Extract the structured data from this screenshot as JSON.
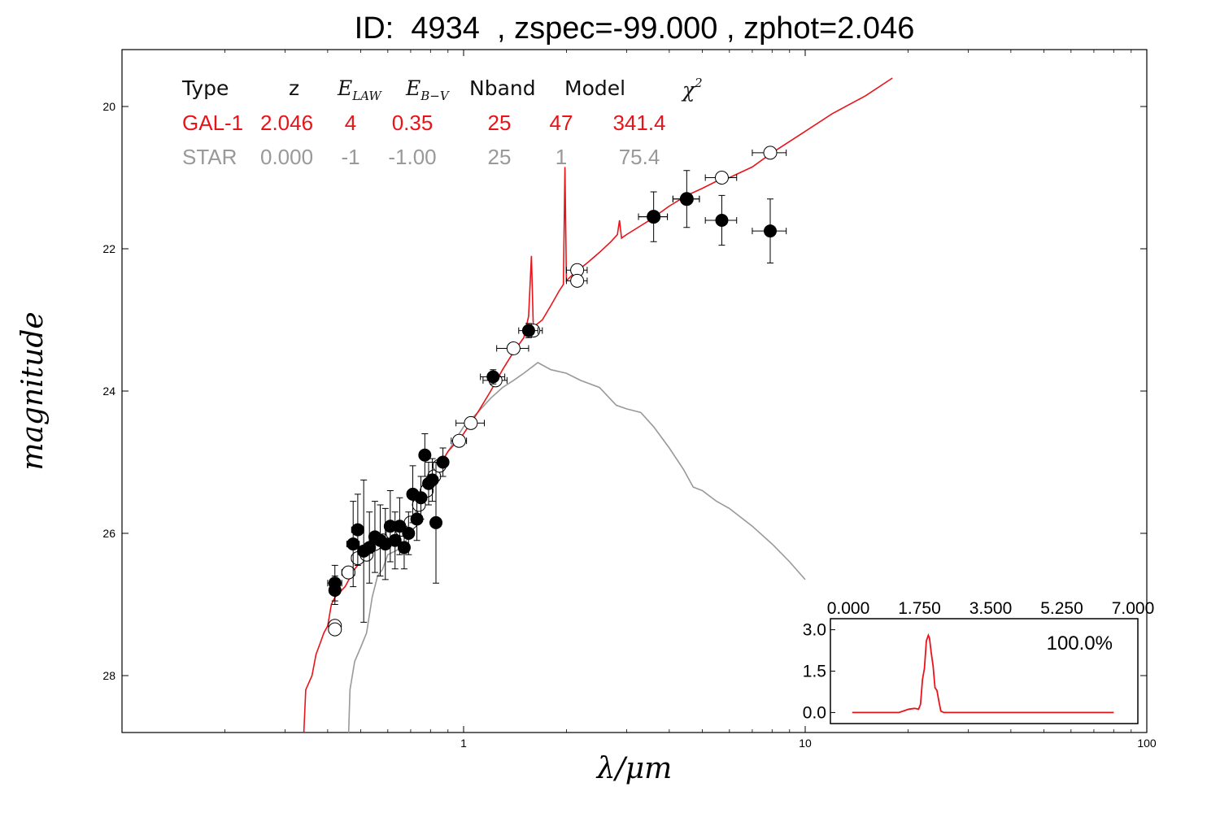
{
  "title": "ID:  4934  , zspec=-99.000 , zphot=2.046",
  "chart_data": {
    "type": "scatter",
    "xlabel": "λ/μm",
    "ylabel": "magnitude",
    "x_scale": "log",
    "xlim": [
      0.1,
      100
    ],
    "ylim": [
      28.8,
      19.2
    ],
    "y_inverted": true,
    "x_ticks": [
      {
        "v": 1,
        "label": "1"
      },
      {
        "v": 10,
        "label": "10"
      },
      {
        "v": 100,
        "label": "100"
      }
    ],
    "y_ticks": [
      {
        "v": 20,
        "label": "20"
      },
      {
        "v": 22,
        "label": "22"
      },
      {
        "v": 24,
        "label": "24"
      },
      {
        "v": 26,
        "label": "26"
      },
      {
        "v": 28,
        "label": "28"
      }
    ],
    "colors": {
      "galaxy": "#e8141a",
      "star": "#999999",
      "observed": "#000000",
      "model_points": "#ffffff"
    },
    "table": {
      "headers": [
        "Type",
        "z",
        "E_LAW",
        "E_B-V",
        "Nband",
        "Model",
        "χ²"
      ],
      "rows": [
        {
          "name": "gal",
          "values": [
            "GAL-1",
            "2.046",
            "4",
            "0.35",
            "25",
            "47",
            "341.4"
          ]
        },
        {
          "name": "star",
          "values": [
            "STAR",
            "0.000",
            "-1",
            "-1.00",
            "25",
            "1",
            "75.4"
          ]
        }
      ]
    },
    "galaxy_template": [
      [
        0.34,
        28.9
      ],
      [
        0.345,
        28.2
      ],
      [
        0.36,
        28.0
      ],
      [
        0.37,
        27.7
      ],
      [
        0.38,
        27.55
      ],
      [
        0.39,
        27.4
      ],
      [
        0.4,
        27.3
      ],
      [
        0.41,
        27.0
      ],
      [
        0.42,
        26.9
      ],
      [
        0.45,
        26.75
      ],
      [
        0.48,
        26.5
      ],
      [
        0.52,
        26.3
      ],
      [
        0.56,
        26.2
      ],
      [
        0.6,
        26.1
      ],
      [
        0.65,
        26.05
      ],
      [
        0.7,
        25.9
      ],
      [
        0.75,
        25.6
      ],
      [
        0.8,
        25.3
      ],
      [
        0.85,
        25.05
      ],
      [
        0.9,
        24.85
      ],
      [
        1.0,
        24.6
      ],
      [
        1.1,
        24.3
      ],
      [
        1.2,
        24.0
      ],
      [
        1.3,
        23.7
      ],
      [
        1.4,
        23.45
      ],
      [
        1.5,
        23.25
      ],
      [
        1.55,
        22.95
      ],
      [
        1.58,
        22.1
      ],
      [
        1.6,
        23.1
      ],
      [
        1.7,
        23.0
      ],
      [
        1.8,
        22.8
      ],
      [
        1.9,
        22.6
      ],
      [
        1.96,
        22.5
      ],
      [
        1.98,
        20.85
      ],
      [
        2.0,
        22.45
      ],
      [
        2.1,
        22.35
      ],
      [
        2.3,
        22.2
      ],
      [
        2.5,
        22.05
      ],
      [
        2.7,
        21.9
      ],
      [
        2.82,
        21.8
      ],
      [
        2.86,
        21.6
      ],
      [
        2.9,
        21.85
      ],
      [
        3.0,
        21.8
      ],
      [
        3.5,
        21.6
      ],
      [
        4.0,
        21.4
      ],
      [
        4.5,
        21.25
      ],
      [
        5.0,
        21.15
      ],
      [
        5.5,
        21.05
      ],
      [
        6.0,
        21.0
      ],
      [
        7.0,
        20.85
      ],
      [
        8.0,
        20.65
      ],
      [
        10,
        20.35
      ],
      [
        12,
        20.1
      ],
      [
        15,
        19.85
      ],
      [
        18,
        19.6
      ]
    ],
    "star_template": [
      [
        0.46,
        28.9
      ],
      [
        0.465,
        28.2
      ],
      [
        0.48,
        27.8
      ],
      [
        0.5,
        27.6
      ],
      [
        0.52,
        27.4
      ],
      [
        0.54,
        26.9
      ],
      [
        0.56,
        26.6
      ],
      [
        0.58,
        26.5
      ],
      [
        0.6,
        26.3
      ],
      [
        0.63,
        26.25
      ],
      [
        0.66,
        26.2
      ],
      [
        0.7,
        26.0
      ],
      [
        0.73,
        25.6
      ],
      [
        0.76,
        25.3
      ],
      [
        0.8,
        25.15
      ],
      [
        0.84,
        25.1
      ],
      [
        0.9,
        24.85
      ],
      [
        1.0,
        24.5
      ],
      [
        1.1,
        24.3
      ],
      [
        1.2,
        24.1
      ],
      [
        1.3,
        23.95
      ],
      [
        1.4,
        23.85
      ],
      [
        1.5,
        23.75
      ],
      [
        1.65,
        23.6
      ],
      [
        1.8,
        23.7
      ],
      [
        2.0,
        23.75
      ],
      [
        2.2,
        23.85
      ],
      [
        2.5,
        23.95
      ],
      [
        2.8,
        24.2
      ],
      [
        3.0,
        24.25
      ],
      [
        3.3,
        24.3
      ],
      [
        3.6,
        24.5
      ],
      [
        4.0,
        24.8
      ],
      [
        4.4,
        25.1
      ],
      [
        4.7,
        25.35
      ],
      [
        5.0,
        25.4
      ],
      [
        5.5,
        25.55
      ],
      [
        6.0,
        25.65
      ],
      [
        7.0,
        25.9
      ],
      [
        8.0,
        26.15
      ],
      [
        9.0,
        26.4
      ],
      [
        10,
        26.65
      ]
    ],
    "observed": [
      {
        "x": 0.42,
        "y": 26.7,
        "xe": 0.02,
        "ye": 0.25
      },
      {
        "x": 0.42,
        "y": 26.8,
        "xe": 0.015,
        "ye": 0.2
      },
      {
        "x": 0.475,
        "y": 26.15,
        "xe": 0.02,
        "ye": 0.6
      },
      {
        "x": 0.49,
        "y": 25.95,
        "xe": 0.02,
        "ye": 0.5
      },
      {
        "x": 0.51,
        "y": 26.25,
        "xe": 0.02,
        "ye": 1.0
      },
      {
        "x": 0.53,
        "y": 26.2,
        "xe": 0.02,
        "ye": 0.5
      },
      {
        "x": 0.55,
        "y": 26.05,
        "xe": 0.02,
        "ye": 0.5
      },
      {
        "x": 0.57,
        "y": 26.1,
        "xe": 0.02,
        "ye": 0.5
      },
      {
        "x": 0.59,
        "y": 26.15,
        "xe": 0.02,
        "ye": 0.5
      },
      {
        "x": 0.61,
        "y": 25.9,
        "xe": 0.02,
        "ye": 0.5
      },
      {
        "x": 0.63,
        "y": 26.1,
        "xe": 0.02,
        "ye": 0.4
      },
      {
        "x": 0.65,
        "y": 25.9,
        "xe": 0.02,
        "ye": 0.4
      },
      {
        "x": 0.67,
        "y": 26.2,
        "xe": 0.02,
        "ye": 0.3
      },
      {
        "x": 0.69,
        "y": 26.0,
        "xe": 0.02,
        "ye": 0.3
      },
      {
        "x": 0.71,
        "y": 25.45,
        "xe": 0.02,
        "ye": 0.4
      },
      {
        "x": 0.73,
        "y": 25.8,
        "xe": 0.02,
        "ye": 0.3
      },
      {
        "x": 0.75,
        "y": 25.5,
        "xe": 0.02,
        "ye": 0.3
      },
      {
        "x": 0.77,
        "y": 24.9,
        "xe": 0.02,
        "ye": 0.3
      },
      {
        "x": 0.79,
        "y": 25.3,
        "xe": 0.02,
        "ye": 0.3
      },
      {
        "x": 0.81,
        "y": 25.25,
        "xe": 0.02,
        "ye": 0.3
      },
      {
        "x": 0.83,
        "y": 25.85,
        "xe": 0.02,
        "ye": 0.85
      },
      {
        "x": 0.87,
        "y": 25.0,
        "xe": 0.03,
        "ye": 0.2
      },
      {
        "x": 1.22,
        "y": 23.8,
        "xe": 0.1,
        "ye": 0.1
      },
      {
        "x": 1.55,
        "y": 23.15,
        "xe": 0.1,
        "ye": 0.1
      },
      {
        "x": 3.6,
        "y": 21.55,
        "xe": 0.35,
        "ye": 0.35
      },
      {
        "x": 4.5,
        "y": 21.3,
        "xe": 0.4,
        "ye": 0.4
      },
      {
        "x": 5.7,
        "y": 21.6,
        "xe": 0.6,
        "ye": 0.35
      },
      {
        "x": 7.9,
        "y": 21.75,
        "xe": 0.9,
        "ye": 0.45
      }
    ],
    "model_points": [
      {
        "x": 0.42,
        "y": 27.3,
        "xe": 0.015
      },
      {
        "x": 0.42,
        "y": 27.35,
        "xe": 0.015
      },
      {
        "x": 0.46,
        "y": 26.55,
        "xe": 0.02
      },
      {
        "x": 0.49,
        "y": 26.35,
        "xe": 0.02
      },
      {
        "x": 0.52,
        "y": 26.3,
        "xe": 0.02
      },
      {
        "x": 0.55,
        "y": 26.15,
        "xe": 0.02
      },
      {
        "x": 0.58,
        "y": 26.1,
        "xe": 0.02
      },
      {
        "x": 0.62,
        "y": 26.0,
        "xe": 0.02
      },
      {
        "x": 0.66,
        "y": 25.95,
        "xe": 0.02
      },
      {
        "x": 0.7,
        "y": 25.85,
        "xe": 0.02
      },
      {
        "x": 0.74,
        "y": 25.6,
        "xe": 0.02
      },
      {
        "x": 0.78,
        "y": 25.4,
        "xe": 0.02
      },
      {
        "x": 0.82,
        "y": 25.2,
        "xe": 0.02
      },
      {
        "x": 0.85,
        "y": 25.05,
        "xe": 0.02
      },
      {
        "x": 0.97,
        "y": 24.7,
        "xe": 0.05
      },
      {
        "x": 1.05,
        "y": 24.45,
        "xe": 0.1
      },
      {
        "x": 1.24,
        "y": 23.85,
        "xe": 0.1
      },
      {
        "x": 1.4,
        "y": 23.4,
        "xe": 0.15
      },
      {
        "x": 1.6,
        "y": 23.15,
        "xe": 0.1
      },
      {
        "x": 2.15,
        "y": 22.3,
        "xe": 0.15
      },
      {
        "x": 2.15,
        "y": 22.45,
        "xe": 0.15
      },
      {
        "x": 3.6,
        "y": 21.55,
        "xe": 0.35
      },
      {
        "x": 4.5,
        "y": 21.3,
        "xe": 0.4
      },
      {
        "x": 5.7,
        "y": 21.0,
        "xe": 0.6
      },
      {
        "x": 7.9,
        "y": 20.65,
        "xe": 0.9
      }
    ],
    "inset": {
      "type": "line",
      "xlim": [
        0,
        7
      ],
      "ylim": [
        -0.4,
        3.4
      ],
      "x_ticks": [
        {
          "v": 0,
          "label": "0.000"
        },
        {
          "v": 1.75,
          "label": "1.750"
        },
        {
          "v": 3.5,
          "label": "3.500"
        },
        {
          "v": 5.25,
          "label": "5.250"
        },
        {
          "v": 7,
          "label": "7.000"
        }
      ],
      "y_ticks": [
        {
          "v": 0,
          "label": "0.0"
        },
        {
          "v": 1.5,
          "label": "1.5"
        },
        {
          "v": 3,
          "label": "3.0"
        }
      ],
      "annotation": "100.0%",
      "pdf": [
        [
          0.1,
          0.0
        ],
        [
          1.3,
          0.0
        ],
        [
          1.55,
          0.12
        ],
        [
          1.7,
          0.15
        ],
        [
          1.8,
          0.12
        ],
        [
          1.85,
          0.3
        ],
        [
          1.9,
          1.2
        ],
        [
          1.95,
          1.6
        ],
        [
          2.0,
          2.6
        ],
        [
          2.05,
          2.8
        ],
        [
          2.08,
          2.7
        ],
        [
          2.12,
          2.2
        ],
        [
          2.17,
          1.7
        ],
        [
          2.22,
          0.9
        ],
        [
          2.27,
          0.8
        ],
        [
          2.32,
          0.4
        ],
        [
          2.37,
          0.05
        ],
        [
          2.45,
          0.0
        ],
        [
          3.5,
          0.0
        ],
        [
          6.8,
          0.0
        ]
      ]
    }
  }
}
